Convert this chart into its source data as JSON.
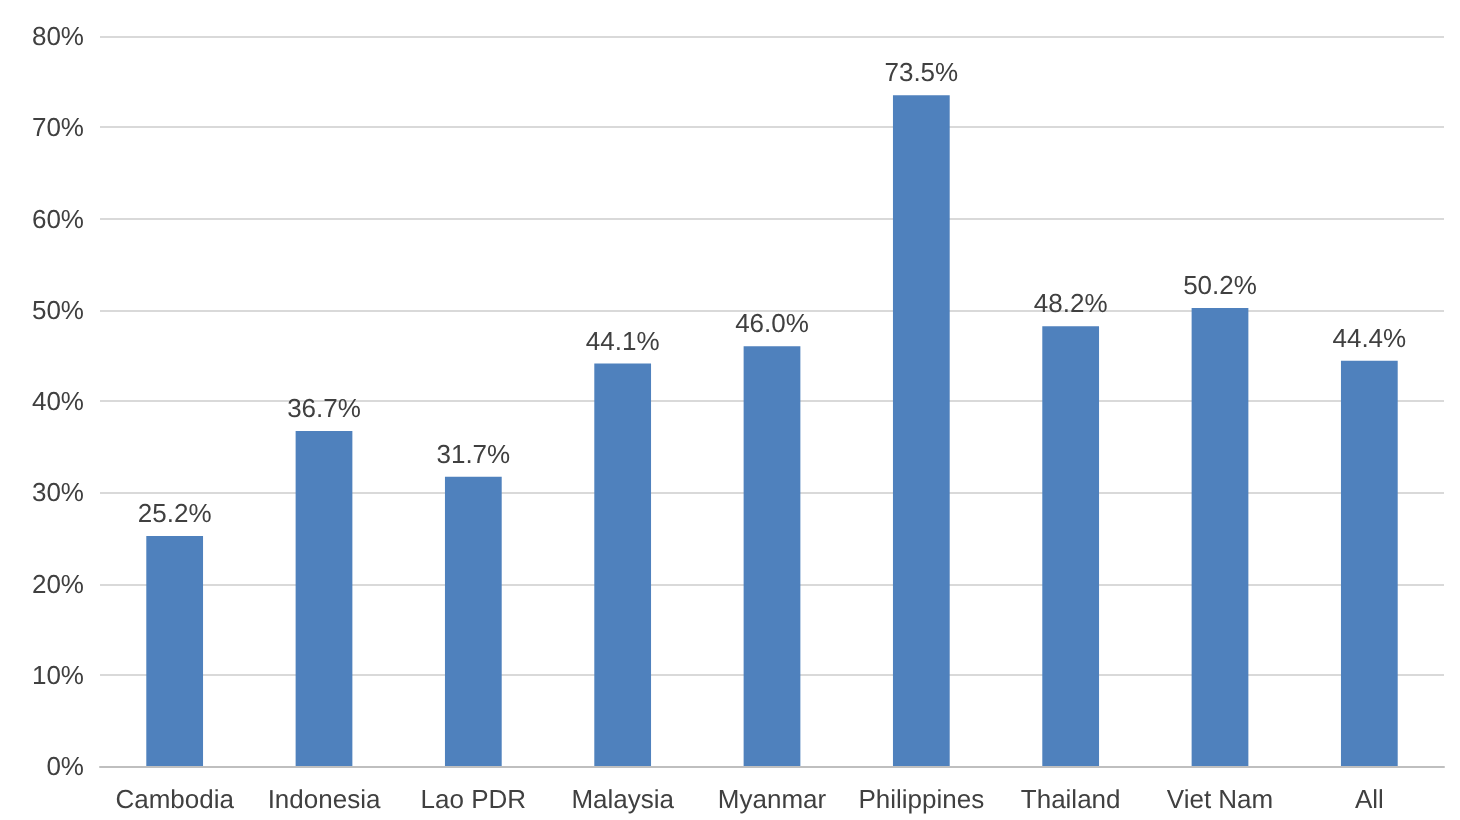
{
  "chart_data": {
    "type": "bar",
    "categories": [
      "Cambodia",
      "Indonesia",
      "Lao PDR",
      "Malaysia",
      "Myanmar",
      "Philippines",
      "Thailand",
      "Viet Nam",
      "All"
    ],
    "values": [
      25.2,
      36.7,
      31.7,
      44.1,
      46.0,
      73.5,
      48.2,
      50.2,
      44.4
    ],
    "value_labels": [
      "25.2%",
      "36.7%",
      "31.7%",
      "44.1%",
      "46.0%",
      "73.5%",
      "48.2%",
      "50.2%",
      "44.4%"
    ],
    "color": "#4f81bd",
    "ylim": [
      0,
      80
    ],
    "yticks": [
      {
        "value": 0,
        "label": "0%"
      },
      {
        "value": 10,
        "label": "10%"
      },
      {
        "value": 20,
        "label": "20%"
      },
      {
        "value": 30,
        "label": "30%"
      },
      {
        "value": 40,
        "label": "40%"
      },
      {
        "value": 50,
        "label": "50%"
      },
      {
        "value": 60,
        "label": "60%"
      },
      {
        "value": 70,
        "label": "70%"
      },
      {
        "value": 80,
        "label": "80%"
      }
    ],
    "grid": "y"
  }
}
